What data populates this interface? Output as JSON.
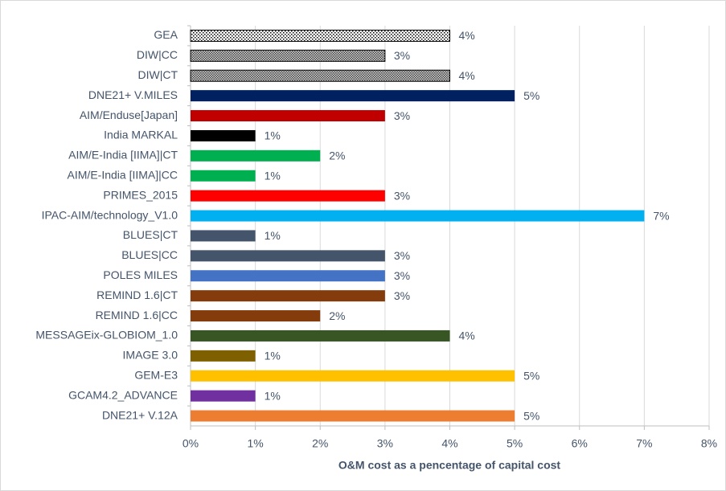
{
  "chart_data": {
    "type": "bar",
    "orientation": "horizontal",
    "x_label": "O&M cost as a pencentage of capital cost",
    "categories": [
      "GEA",
      "DIW|CC",
      "DIW|CT",
      "DNE21+ V.MILES",
      "AIM/Enduse[Japan]",
      "India MARKAL",
      "AIM/E-India [IIMA]|CT",
      "AIM/E-India [IIMA]|CC",
      "PRIMES_2015",
      "IPAC-AIM/technology_V1.0",
      "BLUES|CT",
      "BLUES|CC",
      "POLES MILES",
      "REMIND 1.6|CT",
      "REMIND 1.6|CC",
      "MESSAGEix-GLOBIOM_1.0",
      "IMAGE 3.0",
      "GEM-E3",
      "GCAM4.2_ADVANCE",
      "DNE21+ V.12A"
    ],
    "values": [
      4,
      3,
      4,
      5,
      3,
      1,
      2,
      1,
      3,
      7,
      1,
      3,
      3,
      3,
      2,
      4,
      1,
      5,
      1,
      5
    ],
    "value_labels": [
      "4%",
      "3%",
      "4%",
      "5%",
      "3%",
      "1%",
      "2%",
      "1%",
      "3%",
      "7%",
      "1%",
      "3%",
      "3%",
      "3%",
      "2%",
      "4%",
      "1%",
      "5%",
      "1%",
      "5%"
    ],
    "colors": [
      "#ffffff",
      "#a6a6a6",
      "#a6a6a6",
      "#002060",
      "#c00000",
      "#000000",
      "#00b050",
      "#00b050",
      "#ff0000",
      "#00b0f0",
      "#44546a",
      "#44546a",
      "#4472c4",
      "#843c0c",
      "#843c0c",
      "#375623",
      "#7f6000",
      "#ffc000",
      "#7030a0",
      "#ed7d31"
    ],
    "patterns": [
      "dots",
      "checker",
      "checker",
      null,
      null,
      null,
      null,
      null,
      null,
      null,
      null,
      null,
      null,
      null,
      null,
      null,
      null,
      null,
      null,
      null
    ],
    "xlim": [
      0,
      8
    ],
    "xticks": [
      {
        "value": 0,
        "label": "0%"
      },
      {
        "value": 1,
        "label": "1%"
      },
      {
        "value": 2,
        "label": "2%"
      },
      {
        "value": 3,
        "label": "3%"
      },
      {
        "value": 4,
        "label": "4%"
      },
      {
        "value": 5,
        "label": "5%"
      },
      {
        "value": 6,
        "label": "6%"
      },
      {
        "value": 7,
        "label": "7%"
      },
      {
        "value": 8,
        "label": "8%"
      }
    ],
    "grid": true
  }
}
